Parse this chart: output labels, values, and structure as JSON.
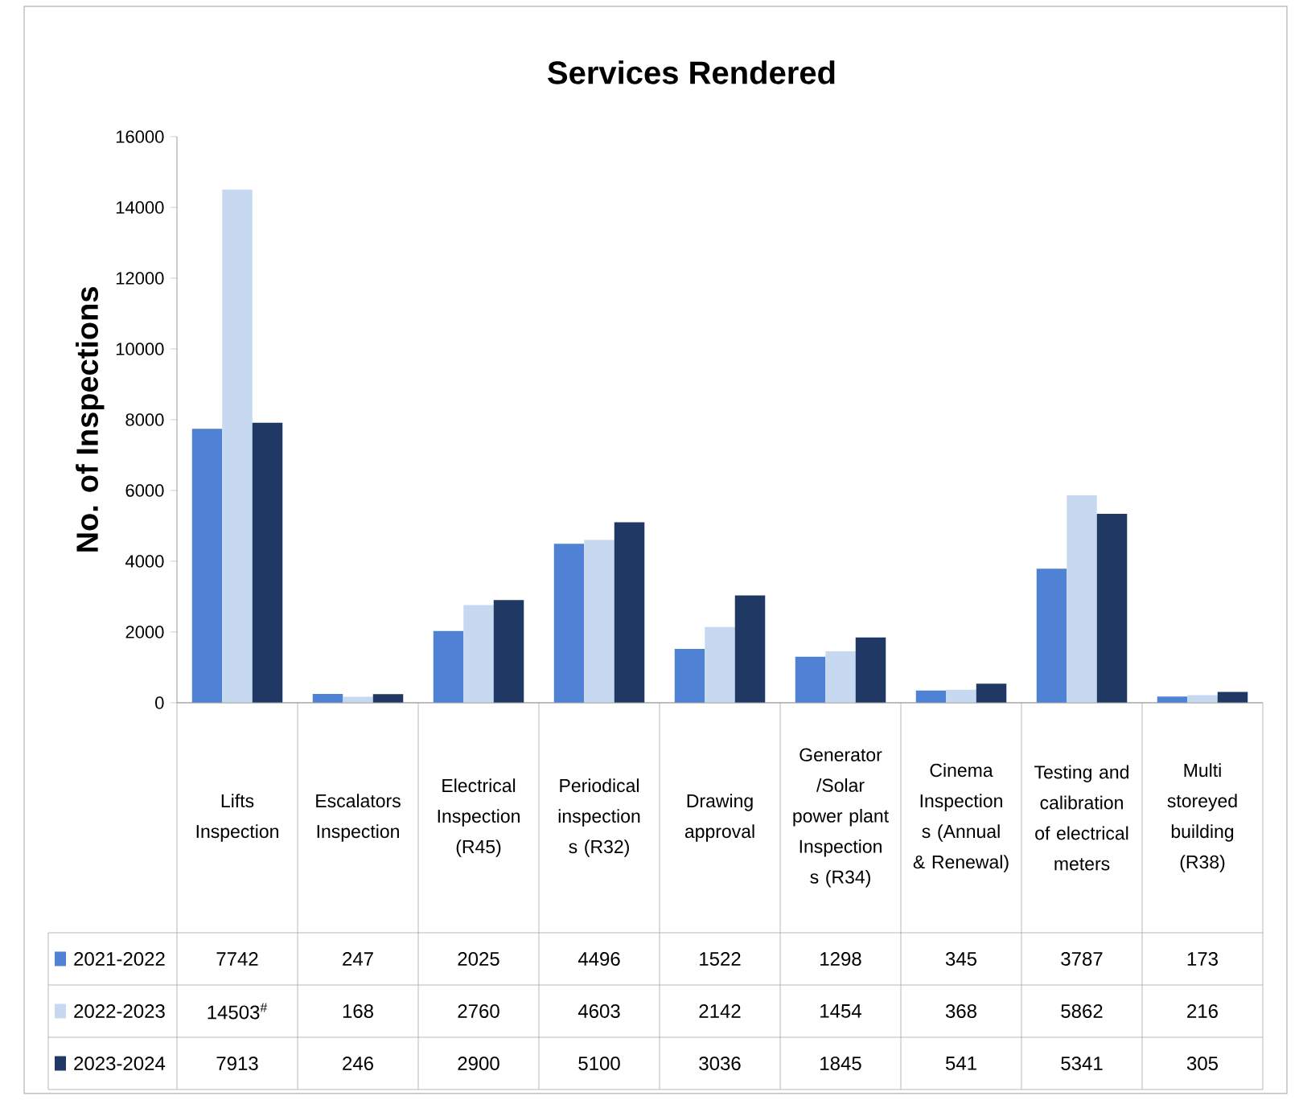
{
  "chart_data": {
    "type": "bar",
    "title": "Services Rendered",
    "ylabel": "No. of Inspections",
    "categories": [
      "Lifts Inspection",
      "Escalators Inspection",
      "Electrical Inspection (R45)",
      "Periodical inspection s (R32)",
      "Drawing approval",
      "Generator /Solar power plant Inspection s (R34)",
      "Cinema Inspection s (Annual & Renewal)",
      "Testing and calibration of electrical meters",
      "Multi storeyed building (R38)"
    ],
    "series": [
      {
        "name": "2021-2022",
        "color": "#4f81d4",
        "values": [
          7742,
          247,
          2025,
          4496,
          1522,
          1298,
          345,
          3787,
          173
        ],
        "value_labels": [
          "7742",
          "247",
          "2025",
          "4496",
          "1522",
          "1298",
          "345",
          "3787",
          "173"
        ]
      },
      {
        "name": "2022-2023",
        "color": "#c6d9f1",
        "values": [
          14503,
          168,
          2760,
          4603,
          2142,
          1454,
          368,
          5862,
          216
        ],
        "value_labels": [
          "14503$^{#}$",
          "168",
          "2760",
          "4603",
          "2142",
          "1454",
          "368",
          "5862",
          "216"
        ]
      },
      {
        "name": "2023-2024",
        "color": "#1f3864",
        "values": [
          7913,
          246,
          2900,
          5100,
          3036,
          1845,
          541,
          5341,
          305
        ],
        "value_labels": [
          "7913",
          "246",
          "2900",
          "5100",
          "3036",
          "1845",
          "541",
          "5341",
          "305"
        ]
      }
    ],
    "ylim": [
      0,
      16000
    ],
    "yticks": [
      0,
      2000,
      4000,
      6000,
      8000,
      10000,
      12000,
      14000,
      16000
    ],
    "legend": "bottom"
  }
}
